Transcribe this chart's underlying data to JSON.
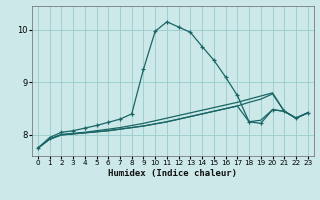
{
  "xlabel": "Humidex (Indice chaleur)",
  "xlim": [
    -0.5,
    23.5
  ],
  "ylim": [
    7.6,
    10.45
  ],
  "yticks": [
    8,
    9,
    10
  ],
  "xticks": [
    0,
    1,
    2,
    3,
    4,
    5,
    6,
    7,
    8,
    9,
    10,
    11,
    12,
    13,
    14,
    15,
    16,
    17,
    18,
    19,
    20,
    21,
    22,
    23
  ],
  "bg_color": "#cce8e8",
  "grid_color": "#99cccc",
  "line_color": "#1a6666",
  "line1_y": [
    7.75,
    7.95,
    8.05,
    8.08,
    8.13,
    8.18,
    8.24,
    8.3,
    8.4,
    9.25,
    9.97,
    10.15,
    10.05,
    9.95,
    9.68,
    9.42,
    9.1,
    8.75,
    8.25,
    8.22,
    8.48,
    8.45,
    8.32,
    8.42
  ],
  "line2_y": [
    7.75,
    7.92,
    8.0,
    8.02,
    8.04,
    8.06,
    8.08,
    8.11,
    8.14,
    8.17,
    8.21,
    8.25,
    8.3,
    8.35,
    8.4,
    8.45,
    8.5,
    8.55,
    8.25,
    8.28,
    8.48,
    8.45,
    8.32,
    8.42
  ],
  "line3_y": [
    7.75,
    7.92,
    8.0,
    8.02,
    8.04,
    8.06,
    8.08,
    8.11,
    8.14,
    8.17,
    8.21,
    8.25,
    8.3,
    8.35,
    8.4,
    8.45,
    8.5,
    8.55,
    8.62,
    8.68,
    8.78,
    8.45,
    8.32,
    8.42
  ],
  "line4_y": [
    7.75,
    7.92,
    8.01,
    8.03,
    8.05,
    8.08,
    8.11,
    8.14,
    8.18,
    8.22,
    8.27,
    8.32,
    8.37,
    8.42,
    8.47,
    8.52,
    8.57,
    8.62,
    8.68,
    8.74,
    8.8,
    8.45,
    8.32,
    8.42
  ]
}
